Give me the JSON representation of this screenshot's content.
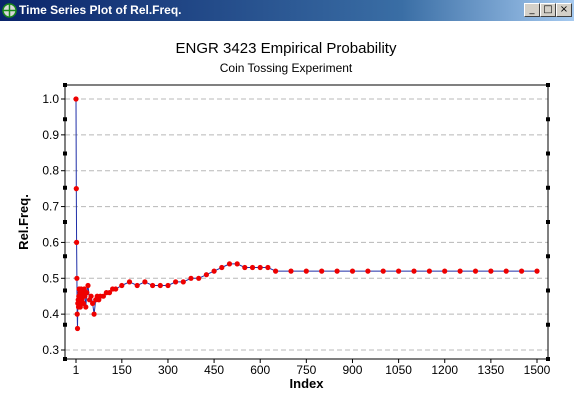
{
  "window": {
    "title": "Time Series Plot of Rel.Freq.",
    "buttons": {
      "minimize": "_",
      "maximize": "□",
      "close": "×"
    }
  },
  "chart_data": {
    "type": "line",
    "title": "ENGR 3423 Empirical Probability",
    "subtitle": "Coin Tossing Experiment",
    "xlabel": "Index",
    "ylabel": "Rel.Freq.",
    "xlim": [
      1,
      1500
    ],
    "ylim": [
      0.3,
      1.0
    ],
    "x_ticks": [
      1,
      150,
      300,
      450,
      600,
      750,
      900,
      1050,
      1200,
      1350,
      1500
    ],
    "y_ticks": [
      "0.3",
      "0.4",
      "0.5",
      "0.6",
      "0.7",
      "0.8",
      "0.9",
      "1.0"
    ],
    "grid": "horizontal dashed",
    "colors": {
      "line": "#1f2fa8",
      "marker": "#ee0000"
    },
    "series": [
      {
        "x": [
          1,
          2,
          3,
          4,
          5,
          6,
          7,
          8,
          9,
          10,
          11,
          12,
          13,
          14,
          15,
          16,
          18,
          20,
          22,
          25,
          28,
          30,
          33,
          36,
          40,
          45,
          50,
          55,
          60,
          65,
          70,
          75,
          80,
          90,
          100,
          110,
          120,
          130,
          150,
          175,
          200,
          225,
          250,
          275,
          300,
          325,
          350,
          375,
          400,
          425,
          450,
          475,
          500,
          525,
          550,
          575,
          600,
          625,
          650,
          700,
          750,
          800,
          850,
          900,
          950,
          1000,
          1050,
          1100,
          1150,
          1200,
          1250,
          1300,
          1350,
          1400,
          1450,
          1500
        ],
        "y": [
          1.0,
          0.75,
          0.6,
          0.5,
          0.4,
          0.36,
          0.43,
          0.44,
          0.42,
          0.45,
          0.47,
          0.44,
          0.43,
          0.46,
          0.42,
          0.45,
          0.47,
          0.44,
          0.46,
          0.43,
          0.47,
          0.45,
          0.42,
          0.46,
          0.48,
          0.44,
          0.45,
          0.43,
          0.4,
          0.44,
          0.45,
          0.44,
          0.45,
          0.45,
          0.46,
          0.46,
          0.47,
          0.47,
          0.48,
          0.49,
          0.48,
          0.49,
          0.48,
          0.48,
          0.48,
          0.49,
          0.49,
          0.5,
          0.5,
          0.51,
          0.52,
          0.53,
          0.54,
          0.54,
          0.53,
          0.53,
          0.53,
          0.53,
          0.52,
          0.52,
          0.52,
          0.52,
          0.52,
          0.52,
          0.52,
          0.52,
          0.52,
          0.52,
          0.52,
          0.52,
          0.52,
          0.52,
          0.52,
          0.52,
          0.52,
          0.52
        ]
      }
    ]
  }
}
